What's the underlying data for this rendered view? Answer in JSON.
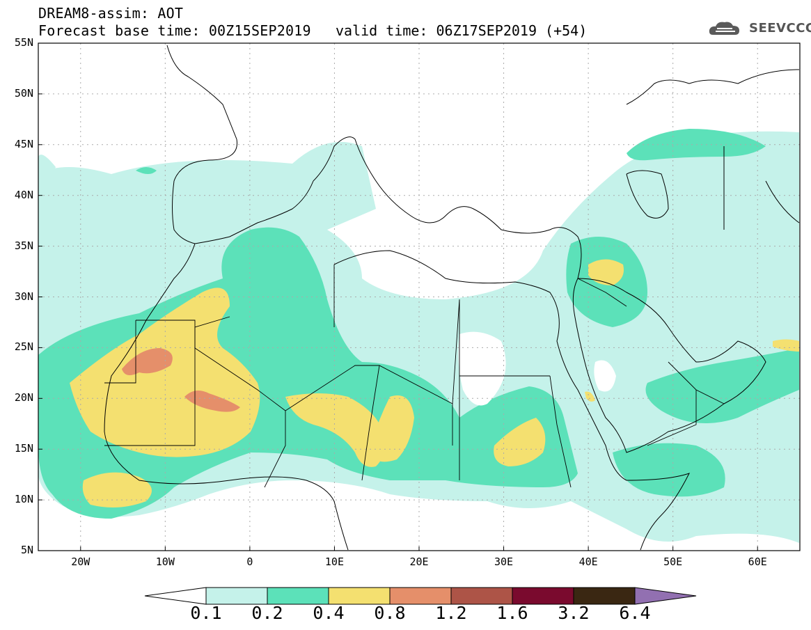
{
  "header": {
    "line1": "DREAM8-assim: AOT",
    "line2": "Forecast base time: 00Z15SEP2019",
    "valid": "valid time: 06Z17SEP2019 (+54)"
  },
  "logo": {
    "text": "SEEVCCC",
    "icon": "cloud-icon"
  },
  "axes": {
    "lat_labels": [
      "55N",
      "50N",
      "45N",
      "40N",
      "35N",
      "30N",
      "25N",
      "20N",
      "15N",
      "10N",
      "5N"
    ],
    "lon_labels": [
      "20W",
      "10W",
      "0",
      "10E",
      "20E",
      "30E",
      "40E",
      "50E",
      "60E"
    ],
    "lat_range": [
      5,
      55
    ],
    "lon_range": [
      -25,
      65
    ]
  },
  "colorbar": {
    "labels": [
      "0.1",
      "0.2",
      "0.4",
      "0.8",
      "1.2",
      "1.6",
      "3.2",
      "6.4"
    ],
    "colors": [
      "#c5f2ea",
      "#5ce1b9",
      "#f4e070",
      "#e58f6a",
      "#ad5447",
      "#7a0a2e",
      "#3a2712",
      "#9270b1"
    ],
    "under_color": "#ffffff"
  },
  "colors": {
    "c1": "#c5f2ea",
    "c2": "#5ce1b9",
    "c3": "#f4e070",
    "c4": "#e58f6a",
    "grid": "#aaaaaa",
    "border": "#000000"
  }
}
